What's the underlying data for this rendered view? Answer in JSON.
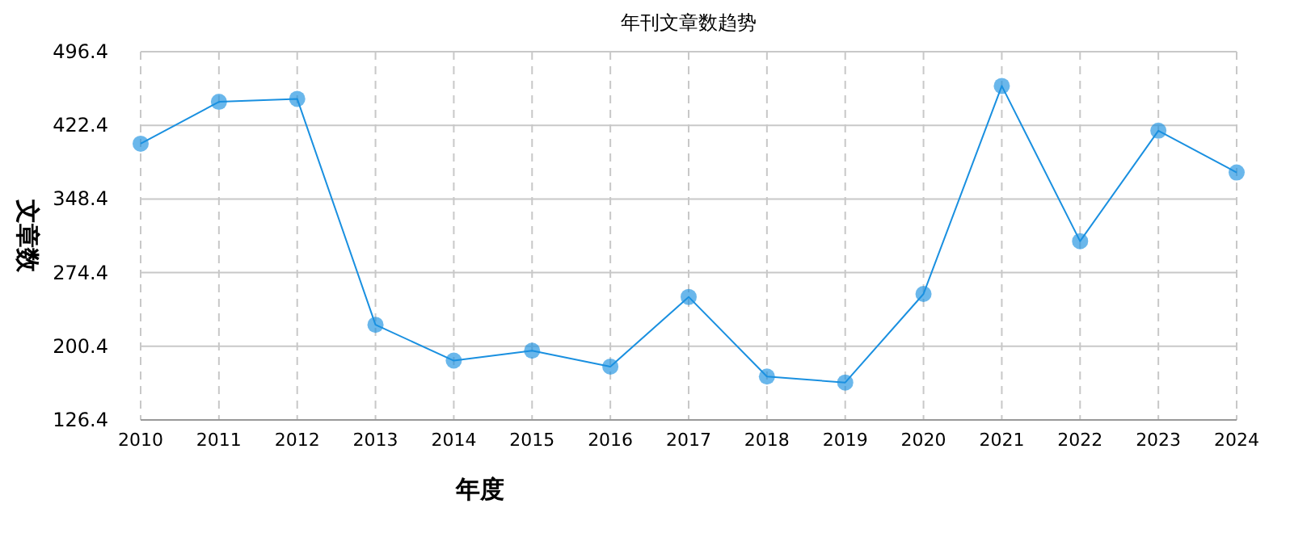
{
  "chart_data": {
    "type": "line",
    "title": "年刊文章数趋势",
    "xlabel": "年度",
    "ylabel": "文章数",
    "categories": [
      "2010",
      "2011",
      "2012",
      "2013",
      "2014",
      "2015",
      "2016",
      "2017",
      "2018",
      "2019",
      "2020",
      "2021",
      "2022",
      "2023",
      "2024"
    ],
    "series": [
      {
        "color": "#1a90e0",
        "values": [
          404,
          446,
          449,
          222,
          186,
          196,
          180,
          250,
          170,
          164,
          253,
          462,
          306,
          417,
          375
        ]
      }
    ],
    "ylim": [
      126.4,
      496.4
    ],
    "yticks": [
      126.4,
      200.4,
      274.4,
      348.4,
      422.4,
      496.4
    ],
    "grid": true,
    "marker": "circle",
    "line_style": "solid"
  }
}
